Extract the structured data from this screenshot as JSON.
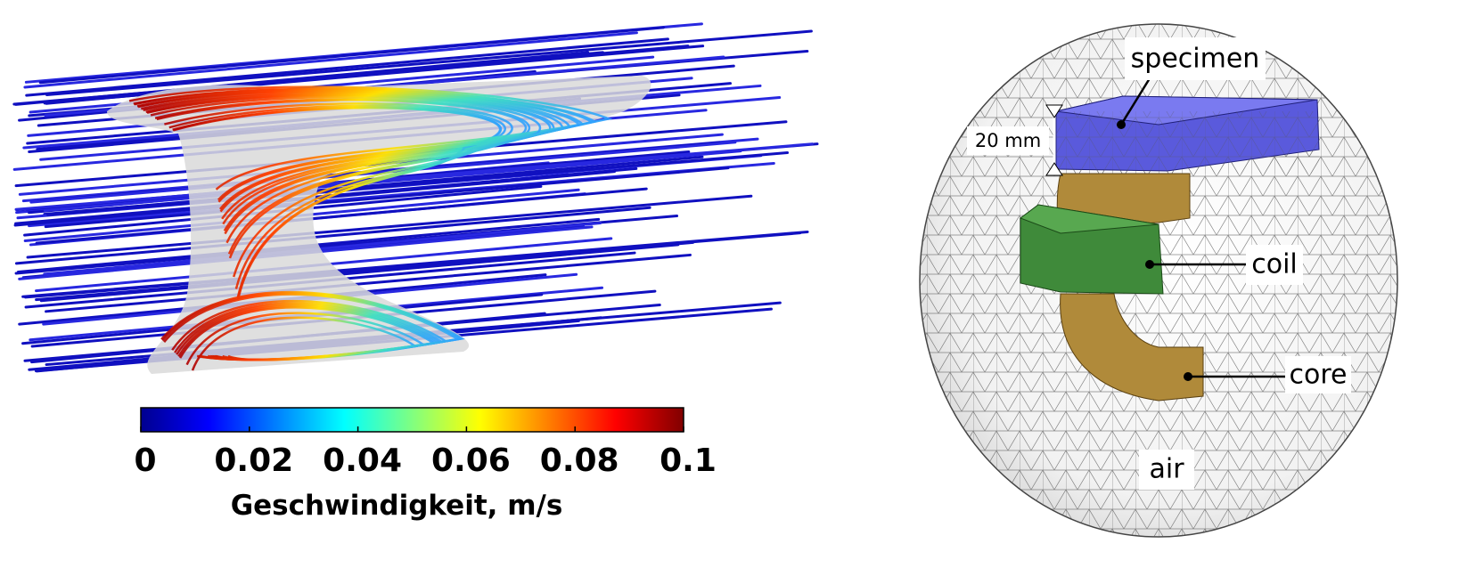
{
  "colorbar": {
    "range": [
      0,
      0.1
    ],
    "ticks": [
      0,
      0.02,
      0.04,
      0.06,
      0.08,
      0.1
    ],
    "label": "Geschwindigkeit, m/s",
    "colors": [
      "#00008f",
      "#0000ff",
      "#0080ff",
      "#00ffff",
      "#80ff80",
      "#ffff00",
      "#ff8000",
      "#ff0000",
      "#800000"
    ]
  },
  "mesh": {
    "labels": {
      "specimen": "specimen",
      "coil": "coil",
      "core": "core",
      "air": "air"
    },
    "dimension": "20 mm"
  }
}
